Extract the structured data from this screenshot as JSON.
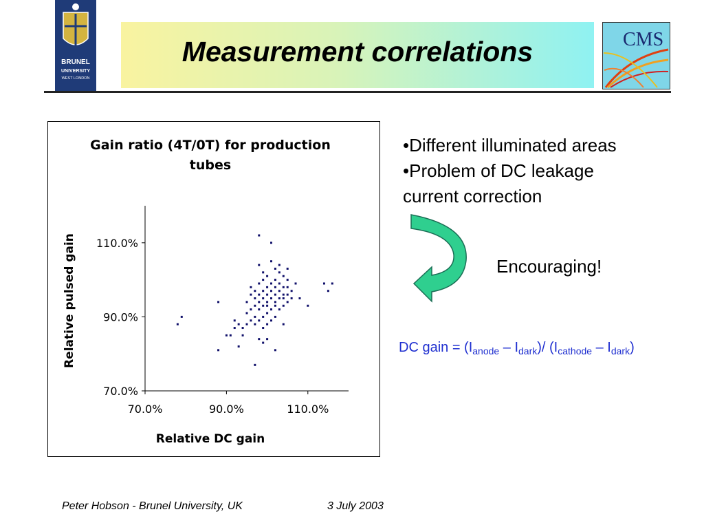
{
  "logos": {
    "left": {
      "line1": "BRUNEL",
      "line2": "UNIVERSITY",
      "line3": "WEST LONDON"
    },
    "right": {
      "text": "CMS"
    }
  },
  "title": "Measurement correlations",
  "bullets": [
    "•Different illuminated areas",
    "•Problem of DC leakage",
    "current correction"
  ],
  "encouraging": "Encouraging!",
  "formula": {
    "prefix": "DC gain = (I",
    "anode": "anode",
    "mid1": " – I",
    "dark1": "dark",
    "mid2": ")/ (I",
    "cathode": "cathode",
    "mid3": " – I",
    "dark2": "dark",
    "suffix": ")"
  },
  "footer": {
    "author": "Peter Hobson - Brunel University, UK",
    "date": "3 July 2003"
  },
  "colors": {
    "point": "#10106a",
    "formula": "#1f2fd0",
    "arrow": "#2fcf8f"
  },
  "chart_data": {
    "type": "scatter",
    "title": "Gain ratio (4T/0T) for production tubes",
    "title_lines": [
      "Gain ratio (4T/0T) for production",
      "tubes"
    ],
    "xlabel": "Relative DC gain",
    "ylabel": "Relative pulsed gain",
    "xlim": [
      0.7,
      1.2
    ],
    "ylim": [
      0.7,
      1.2
    ],
    "xticks": [
      "70.0%",
      "90.0%",
      "110.0%"
    ],
    "yticks": [
      "70.0%",
      "90.0%",
      "110.0%"
    ],
    "grid": false,
    "points": [
      [
        0.78,
        0.88
      ],
      [
        0.79,
        0.9
      ],
      [
        0.88,
        0.94
      ],
      [
        0.88,
        0.81
      ],
      [
        0.9,
        0.85
      ],
      [
        0.91,
        0.85
      ],
      [
        0.92,
        0.87
      ],
      [
        0.92,
        0.89
      ],
      [
        0.93,
        0.88
      ],
      [
        0.93,
        0.82
      ],
      [
        0.94,
        0.87
      ],
      [
        0.94,
        0.85
      ],
      [
        0.95,
        0.88
      ],
      [
        0.95,
        0.91
      ],
      [
        0.95,
        0.94
      ],
      [
        0.96,
        0.89
      ],
      [
        0.96,
        0.92
      ],
      [
        0.96,
        0.96
      ],
      [
        0.96,
        0.98
      ],
      [
        0.97,
        0.9
      ],
      [
        0.97,
        0.93
      ],
      [
        0.97,
        0.95
      ],
      [
        0.97,
        0.97
      ],
      [
        0.97,
        0.77
      ],
      [
        0.97,
        0.88
      ],
      [
        0.98,
        0.89
      ],
      [
        0.98,
        0.92
      ],
      [
        0.98,
        0.94
      ],
      [
        0.98,
        0.96
      ],
      [
        0.98,
        1.12
      ],
      [
        0.98,
        0.84
      ],
      [
        0.98,
        1.04
      ],
      [
        0.98,
        0.99
      ],
      [
        0.99,
        0.87
      ],
      [
        0.99,
        0.9
      ],
      [
        0.99,
        0.93
      ],
      [
        0.99,
        0.95
      ],
      [
        0.99,
        0.97
      ],
      [
        0.99,
        1.0
      ],
      [
        0.99,
        1.02
      ],
      [
        0.99,
        0.83
      ],
      [
        1.0,
        0.88
      ],
      [
        1.0,
        0.91
      ],
      [
        1.0,
        0.93
      ],
      [
        1.0,
        0.94
      ],
      [
        1.0,
        0.96
      ],
      [
        1.0,
        0.98
      ],
      [
        1.0,
        0.84
      ],
      [
        1.0,
        1.01
      ],
      [
        1.01,
        0.89
      ],
      [
        1.01,
        0.92
      ],
      [
        1.01,
        0.95
      ],
      [
        1.01,
        0.97
      ],
      [
        1.01,
        0.99
      ],
      [
        1.01,
        1.1
      ],
      [
        1.01,
        1.05
      ],
      [
        1.02,
        0.9
      ],
      [
        1.02,
        0.93
      ],
      [
        1.02,
        0.94
      ],
      [
        1.02,
        0.96
      ],
      [
        1.02,
        0.98
      ],
      [
        1.02,
        1.0
      ],
      [
        1.02,
        0.81
      ],
      [
        1.02,
        1.03
      ],
      [
        1.03,
        0.92
      ],
      [
        1.03,
        0.95
      ],
      [
        1.03,
        0.97
      ],
      [
        1.03,
        0.99
      ],
      [
        1.03,
        1.02
      ],
      [
        1.03,
        1.04
      ],
      [
        1.04,
        0.88
      ],
      [
        1.04,
        0.93
      ],
      [
        1.04,
        0.95
      ],
      [
        1.04,
        0.96
      ],
      [
        1.04,
        0.98
      ],
      [
        1.04,
        1.01
      ],
      [
        1.05,
        0.94
      ],
      [
        1.05,
        0.96
      ],
      [
        1.05,
        0.98
      ],
      [
        1.05,
        1.03
      ],
      [
        1.05,
        1.0
      ],
      [
        1.06,
        0.97
      ],
      [
        1.06,
        0.95
      ],
      [
        1.07,
        0.99
      ],
      [
        1.08,
        0.95
      ],
      [
        1.1,
        0.93
      ],
      [
        1.14,
        0.99
      ],
      [
        1.15,
        0.97
      ],
      [
        1.16,
        0.99
      ]
    ]
  }
}
